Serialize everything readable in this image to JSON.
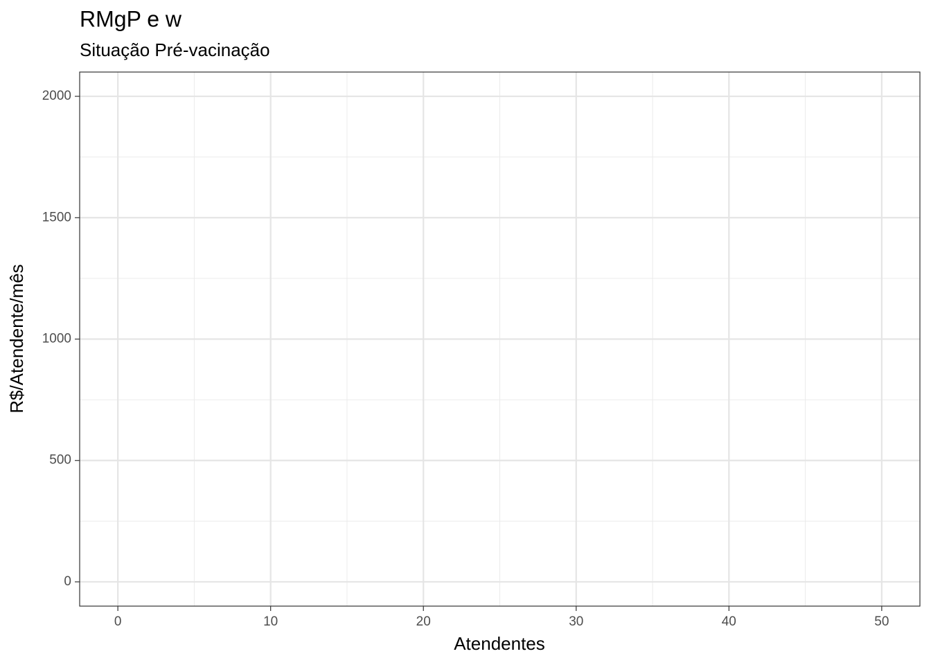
{
  "chart_data": {
    "type": "line",
    "title": "RMgP e w",
    "subtitle": "Situação Pré-vacinação",
    "x_label": "Atendentes",
    "y_label": "R$/Atendente/mês",
    "xlim": [
      -2.5,
      52.5
    ],
    "xticks": [
      0,
      10,
      20,
      30,
      40,
      50
    ],
    "ylim": [
      -100,
      2100
    ],
    "yticks": [
      0,
      500,
      1000,
      1500,
      2000
    ],
    "grid": true
  }
}
